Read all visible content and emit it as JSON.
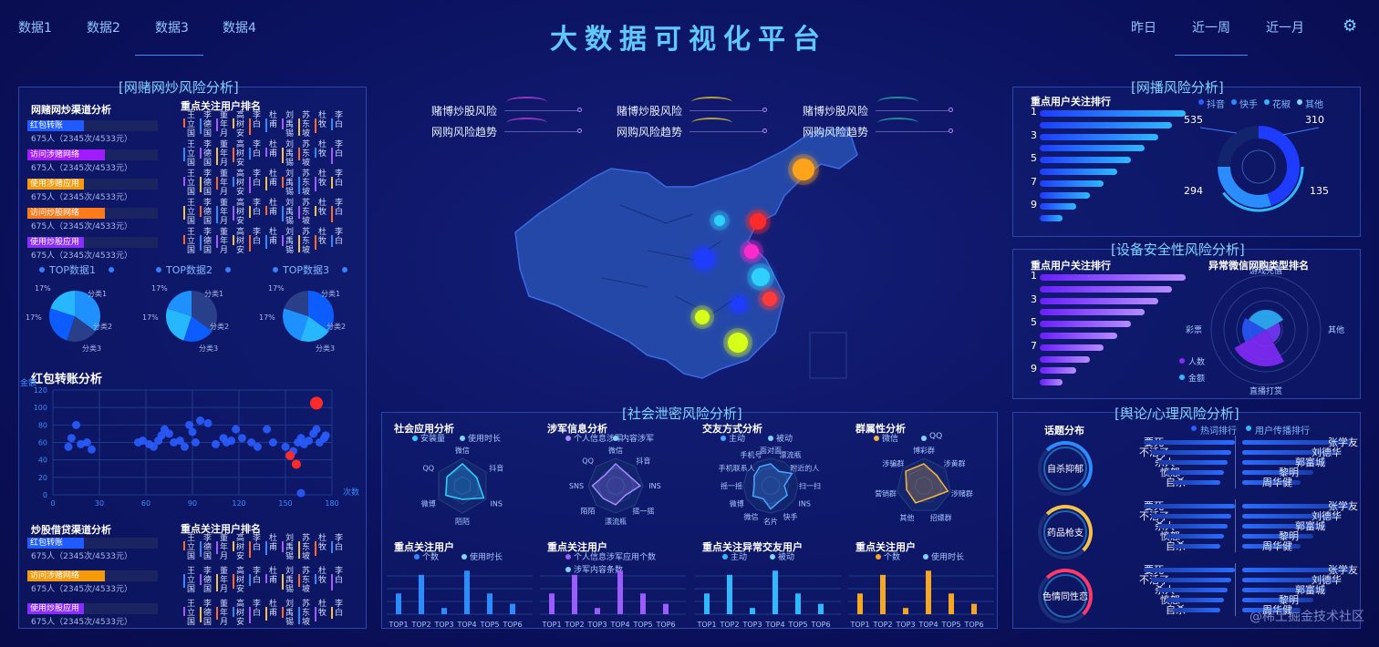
{
  "title": "大数据可视化平台",
  "nav_left": [
    "数据1",
    "数据2",
    "数据3",
    "数据4"
  ],
  "nav_right": [
    "昨日",
    "近一周",
    "近一月"
  ],
  "left_panel": {
    "title": "[网赌网炒风险分析]",
    "channel_title": "网赌网炒渠道分析",
    "rank_title": "重点关注用户排名",
    "channels": [
      {
        "label": "红包转账",
        "stat": "675人（2345次/4533元）",
        "color": "#1f5bff"
      },
      {
        "label": "访问涉赌网络",
        "stat": "675人（2345次/4533元）",
        "color": "#a21bff"
      },
      {
        "label": "使用涉赌应用",
        "stat": "675人（2345次/4533元）",
        "color": "#f59a0b"
      },
      {
        "label": "访问炒股网络",
        "stat": "675人（2345次/4533元）",
        "color": "#ff7a1a"
      },
      {
        "label": "使用炒股应用",
        "stat": "675人（2345次/4533元）",
        "color": "#8a2bff"
      }
    ],
    "names": [
      "王立国",
      "李德国",
      "董年月",
      "高树安",
      "李白",
      "杜甫",
      "刘禹锡",
      "苏东坡",
      "杜牧",
      "李白"
    ],
    "pies": [
      {
        "label": "TOP数据1"
      },
      {
        "label": "TOP数据2"
      },
      {
        "label": "TOP数据3"
      }
    ],
    "pie_labels": {
      "pct1": "17%",
      "pct2": "17%",
      "cat1": "分类1",
      "cat2": "分类2",
      "cat3": "分类3"
    },
    "scatter_title": "红包转账分析",
    "scatter_ylabel": "金额",
    "scatter_xlabel": "次数",
    "loan_title": "炒股借贷渠道分析",
    "loan_rank_title": "重点关注用户排名",
    "loan_channels": [
      {
        "label": "红包转账",
        "stat": "675人（2345次/4533元）",
        "color": "#1f5bff"
      },
      {
        "label": "访问涉赌网络",
        "stat": "675人（2345次/4533元）",
        "color": "#f59a0b"
      },
      {
        "label": "使用炒股应用",
        "stat": "675人（2345次/4533元）",
        "color": "#8a2bff"
      }
    ]
  },
  "chart_data": [
    {
      "type": "scatter",
      "title": "红包转账分析",
      "ylabel": "金额",
      "xlabel": "次数",
      "xlim": [
        0,
        180
      ],
      "ylim": [
        0,
        120
      ],
      "xticks": [
        0,
        30,
        60,
        90,
        120,
        150,
        180
      ],
      "yticks": [
        0,
        20,
        40,
        60,
        80,
        100,
        120
      ],
      "points": [
        [
          10,
          55
        ],
        [
          12,
          65
        ],
        [
          15,
          80
        ],
        [
          18,
          58
        ],
        [
          22,
          60
        ],
        [
          25,
          52
        ],
        [
          55,
          60
        ],
        [
          58,
          62
        ],
        [
          62,
          58
        ],
        [
          65,
          55
        ],
        [
          68,
          62
        ],
        [
          70,
          68
        ],
        [
          72,
          75
        ],
        [
          75,
          70
        ],
        [
          78,
          60
        ],
        [
          82,
          62
        ],
        [
          85,
          55
        ],
        [
          88,
          80
        ],
        [
          90,
          72
        ],
        [
          92,
          60
        ],
        [
          95,
          85
        ],
        [
          100,
          82
        ],
        [
          105,
          58
        ],
        [
          110,
          65
        ],
        [
          112,
          60
        ],
        [
          115,
          62
        ],
        [
          118,
          75
        ],
        [
          122,
          65
        ],
        [
          128,
          60
        ],
        [
          132,
          55
        ],
        [
          138,
          75
        ],
        [
          142,
          60
        ],
        [
          150,
          55
        ],
        [
          155,
          50
        ],
        [
          158,
          60
        ],
        [
          160,
          65
        ],
        [
          162,
          58
        ],
        [
          165,
          62
        ],
        [
          168,
          70
        ],
        [
          170,
          75
        ],
        [
          172,
          60
        ],
        [
          175,
          65
        ],
        [
          176,
          68
        ],
        [
          160,
          2
        ]
      ],
      "highlights": [
        [
          170,
          105
        ],
        [
          153,
          45
        ],
        [
          157,
          35
        ]
      ]
    },
    {
      "type": "bar",
      "title": "重点关注用户",
      "categories": [
        "TOP1",
        "TOP2",
        "TOP3",
        "TOP4",
        "TOP5",
        "TOP6"
      ],
      "series": [
        {
          "name": "个数",
          "values": [
            50,
            95,
            15,
            105,
            50,
            25
          ]
        },
        {
          "name": "使用时长",
          "values": [
            45,
            88,
            12,
            98,
            45,
            22
          ]
        }
      ]
    }
  ],
  "center": {
    "legend": [
      [
        "赌博炒股风险",
        "网购风险趋势"
      ],
      [
        "赌博炒股风险",
        "网购风险趋势"
      ],
      [
        "赌博炒股风险",
        "网购风险趋势"
      ]
    ],
    "social_title": "[社会泄密风险分析]",
    "radars": [
      {
        "title": "社会应用分析",
        "legend": [
          "安装量",
          "使用时长"
        ],
        "labels": [
          "微信",
          "抖音",
          "INS",
          "陌陌",
          "微博",
          "QQ"
        ],
        "color": "#2fd0ff"
      },
      {
        "title": "涉军信息分析",
        "legend": [
          "个人信息涉军",
          "内容涉军"
        ],
        "labels": [
          "微信",
          "抖音",
          "INS",
          "摇一摇",
          "漂流瓶",
          "陌陌",
          "SNS",
          "QQ"
        ],
        "color": "#a58bff"
      },
      {
        "title": "交友方式分析",
        "legend": [
          "主动",
          "被动"
        ],
        "labels": [
          "面对面",
          "漂流瓶",
          "附近的人",
          "扫一扫",
          "INS",
          "快手",
          "名片",
          "微信",
          "微博",
          "摇一摇",
          "手机联系人",
          "手机号"
        ],
        "color": "#4aa3ff"
      },
      {
        "title": "群属性分析",
        "legend": [
          "微信",
          "QQ"
        ],
        "labels": [
          "博彩群",
          "涉黄群",
          "涉赌群",
          "招嫖群",
          "其他",
          "营销群",
          "涉骗群"
        ],
        "color": "#f5b342"
      }
    ],
    "bars": [
      {
        "title": "重点关注用户",
        "legend": [
          "个数",
          "使用时长"
        ],
        "color": "#2a8cff"
      },
      {
        "title": "重点关注用户",
        "legend": [
          "个人信息涉军应用个数",
          "涉军内容条数"
        ],
        "color": "#9b5cff"
      },
      {
        "title": "重点关注异常交友用户",
        "legend": [
          "主动",
          "被动"
        ],
        "color": "#2fb8ff"
      },
      {
        "title": "重点关注用户",
        "legend": [
          "个数",
          "使用时长"
        ],
        "color": "#f5a623"
      }
    ],
    "bar_categories": [
      "TOP1",
      "TOP2",
      "TOP3",
      "TOP4",
      "TOP5",
      "TOP6"
    ],
    "bar_values": [
      50,
      95,
      15,
      105,
      50,
      25
    ]
  },
  "right": {
    "net_title": "[网播风险分析]",
    "net_rank_title": "重点用户关注排行",
    "net_legend": [
      "抖音",
      "快手",
      "花椒",
      "其他"
    ],
    "net_donut_labels": [
      "535",
      "310",
      "135",
      "294"
    ],
    "rank_numbers": [
      "1",
      "3",
      "5",
      "7",
      "9"
    ],
    "dev_title": "[设备安全性风险分析]",
    "dev_rank_title": "重点用户关注排行",
    "dev_polar_title": "异常微信网购类型排名",
    "dev_polar_labels": [
      "游戏充值",
      "其他",
      "直播打赏",
      "彩票"
    ],
    "dev_legend": [
      "人数",
      "金额"
    ],
    "opinion_title": "[舆论/心理风险分析]",
    "topic_title": "话题分布",
    "opinion_legend": [
      "热词排行",
      "用户传播排行"
    ],
    "topics": [
      "自杀抑郁",
      "药品枪支",
      "色情同性恋"
    ],
    "hot_words": [
      "要死",
      "不活了",
      "杀人",
      "愤怒",
      "自杀"
    ],
    "users": [
      "张学友",
      "刘德华",
      "郭富城",
      "黎明",
      "周华健"
    ]
  },
  "watermark": "@稀土掘金技术社区"
}
